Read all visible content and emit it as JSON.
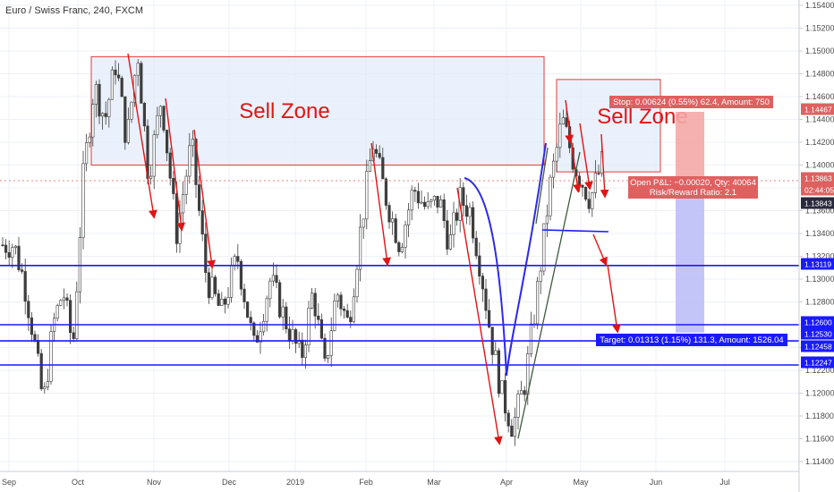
{
  "title": "Euro / Swiss Franc, 240, FXCM",
  "colors": {
    "up": "#ffffff",
    "down": "#3d3d3d",
    "wick": "#3d3d3d",
    "zone_fill": "#e3ecfb",
    "zone_stroke": "#e23b3b",
    "level": "#1a1aff",
    "arrow": "#e01414",
    "curve": "#2b2be6",
    "trend": "#3e5a3e",
    "stop_fill": "#f4a7a7",
    "target_fill": "#b9bbf7",
    "label_red": "#e06060",
    "label_blue": "#1a1aff",
    "label_dark": "#2a2a3e",
    "grid": "#eef0f4",
    "axis": "#c8ccd4"
  },
  "chart_data": {
    "type": "candlestick",
    "title": "Euro / Swiss Franc, 240, FXCM",
    "ylim": [
      1.114,
      1.154
    ],
    "y_ticks": [
      "1.15400",
      "1.15200",
      "1.15000",
      "1.14800",
      "1.14600",
      "1.14400",
      "1.14200",
      "1.14000",
      "1.13800",
      "1.13600",
      "1.13400",
      "1.13200",
      "1.13000",
      "1.12800",
      "1.12600",
      "1.12400",
      "1.12200",
      "1.12000",
      "1.11800",
      "1.11600",
      "1.11400"
    ],
    "x_ticks": [
      "Sep",
      "Oct",
      "Nov",
      "Dec",
      "2019",
      "Feb",
      "Mar",
      "Apr",
      "May",
      "Jun",
      "Jul"
    ],
    "grid": true,
    "price_path": [
      [
        "Sep",
        1.133
      ],
      [
        "Sep",
        1.13
      ],
      [
        "Sep",
        1.125
      ],
      [
        "Sep",
        1.119
      ],
      [
        "Sep",
        1.126
      ],
      [
        "Sep",
        1.129
      ],
      [
        "Sep",
        1.124
      ],
      [
        "Oct",
        1.139
      ],
      [
        "Oct",
        1.147
      ],
      [
        "Oct",
        1.144
      ],
      [
        "Oct",
        1.149
      ],
      [
        "Oct",
        1.142
      ],
      [
        "Oct",
        1.15
      ],
      [
        "Oct",
        1.139
      ],
      [
        "Nov",
        1.146
      ],
      [
        "Nov",
        1.134
      ],
      [
        "Nov",
        1.142
      ],
      [
        "Nov",
        1.13
      ],
      [
        "Nov",
        1.127
      ],
      [
        "Dec",
        1.132
      ],
      [
        "Dec",
        1.124
      ],
      [
        "Dec",
        1.13
      ],
      [
        "Dec",
        1.126
      ],
      [
        "2019",
        1.123
      ],
      [
        "2019",
        1.129
      ],
      [
        "2019",
        1.122
      ],
      [
        "2019",
        1.129
      ],
      [
        "2019",
        1.126
      ],
      [
        "2019",
        1.134
      ],
      [
        "Feb",
        1.142
      ],
      [
        "Feb",
        1.137
      ],
      [
        "Feb",
        1.133
      ],
      [
        "Feb",
        1.138
      ],
      [
        "Feb",
        1.136
      ],
      [
        "Mar",
        1.137
      ],
      [
        "Mar",
        1.133
      ],
      [
        "Mar",
        1.137
      ],
      [
        "Mar",
        1.136
      ],
      [
        "Mar",
        1.131
      ],
      [
        "Mar",
        1.125
      ],
      [
        "Mar",
        1.12
      ],
      [
        "Apr",
        1.117
      ],
      [
        "Apr",
        1.121
      ],
      [
        "Apr",
        1.129
      ],
      [
        "Apr",
        1.138
      ],
      [
        "Apr",
        1.144
      ],
      [
        "Apr",
        1.14
      ],
      [
        "May",
        1.137
      ],
      [
        "May",
        1.142
      ],
      [
        "May",
        1.138
      ],
      [
        "May",
        1.139
      ]
    ],
    "zones": [
      {
        "label": "Sell Zone",
        "y_top": 1.1495,
        "y_bottom": 1.14
      },
      {
        "label": "Sell Zone",
        "y_top": 1.1475,
        "y_bottom": 1.1394
      }
    ],
    "levels": [
      1.13119,
      1.126,
      1.12458,
      1.12247
    ],
    "price_labels": [
      {
        "value": "1.14467",
        "kind": "stop"
      },
      {
        "value": "1.13863",
        "kind": "current"
      },
      {
        "value": "02:44:05",
        "kind": "timer"
      },
      {
        "value": "1.13843",
        "kind": "dark"
      },
      {
        "value": "1.13119",
        "kind": "level"
      },
      {
        "value": "1.12600",
        "kind": "level"
      },
      {
        "value": "1.12530",
        "kind": "level"
      },
      {
        "value": "1.12458",
        "kind": "level"
      },
      {
        "value": "1.12247",
        "kind": "level"
      }
    ],
    "position": {
      "stop_label": "Stop: 0.00624 (0.55%) 62.4, Amount: 750",
      "pnl_label": "Open P&L: −0.00020, Qty: 40064",
      "rr_label": "Risk/Reward Ratio: 2.1",
      "target_label": "Target: 0.01313 (1.15%) 131.3, Amount: 1526.04"
    }
  }
}
